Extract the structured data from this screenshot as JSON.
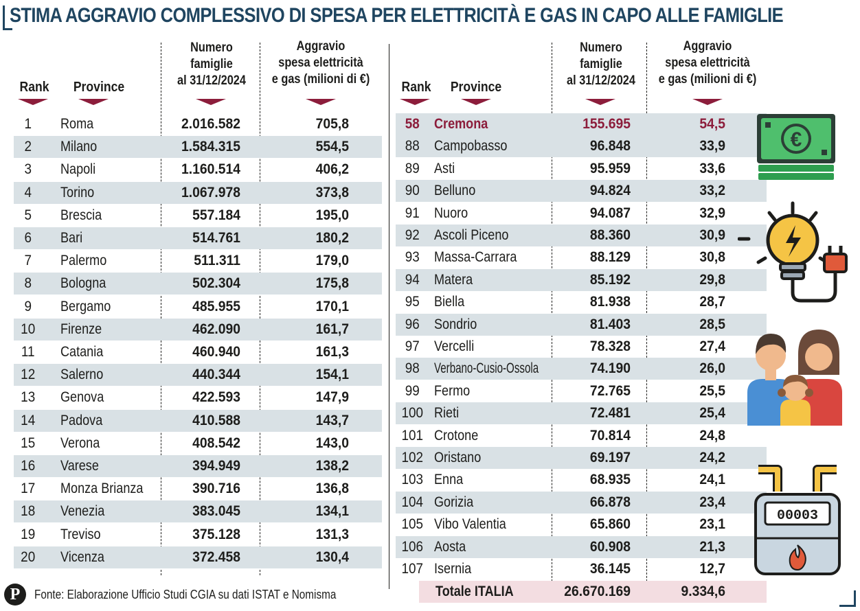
{
  "title": "STIMA AGGRAVIO COMPLESSIVO DI SPESA PER ELETTRICITÀ E GAS IN CAPO ALLE FAMIGLIE",
  "headers": {
    "rank": "Rank",
    "province": "Province",
    "families_l1": "Numero",
    "families_l2": "famiglie",
    "families_l3": "al 31/12/2024",
    "cost_l1": "Aggravio",
    "cost_l2": "spesa elettricità",
    "cost_l3": "e gas (milioni di €)"
  },
  "left_rows": [
    {
      "rank": "1",
      "province": "Roma",
      "families": "2.016.582",
      "cost": "705,8"
    },
    {
      "rank": "2",
      "province": "Milano",
      "families": "1.584.315",
      "cost": "554,5"
    },
    {
      "rank": "3",
      "province": "Napoli",
      "families": "1.160.514",
      "cost": "406,2"
    },
    {
      "rank": "4",
      "province": "Torino",
      "families": "1.067.978",
      "cost": "373,8"
    },
    {
      "rank": "5",
      "province": "Brescia",
      "families": "557.184",
      "cost": "195,0"
    },
    {
      "rank": "6",
      "province": "Bari",
      "families": "514.761",
      "cost": "180,2"
    },
    {
      "rank": "7",
      "province": "Palermo",
      "families": "511.311",
      "cost": "179,0"
    },
    {
      "rank": "8",
      "province": "Bologna",
      "families": "502.304",
      "cost": "175,8"
    },
    {
      "rank": "9",
      "province": "Bergamo",
      "families": "485.955",
      "cost": "170,1"
    },
    {
      "rank": "10",
      "province": "Firenze",
      "families": "462.090",
      "cost": "161,7"
    },
    {
      "rank": "11",
      "province": "Catania",
      "families": "460.940",
      "cost": "161,3"
    },
    {
      "rank": "12",
      "province": "Salerno",
      "families": "440.344",
      "cost": "154,1"
    },
    {
      "rank": "13",
      "province": "Genova",
      "families": "422.593",
      "cost": "147,9"
    },
    {
      "rank": "14",
      "province": "Padova",
      "families": "410.588",
      "cost": "143,7"
    },
    {
      "rank": "15",
      "province": "Verona",
      "families": "408.542",
      "cost": "143,0"
    },
    {
      "rank": "16",
      "province": "Varese",
      "families": "394.949",
      "cost": "138,2"
    },
    {
      "rank": "17",
      "province": "Monza Brianza",
      "families": "390.716",
      "cost": "136,8"
    },
    {
      "rank": "18",
      "province": "Venezia",
      "families": "383.045",
      "cost": "134,1"
    },
    {
      "rank": "19",
      "province": "Treviso",
      "families": "375.128",
      "cost": "131,3"
    },
    {
      "rank": "20",
      "province": "Vicenza",
      "families": "372.458",
      "cost": "130,4"
    }
  ],
  "right_rows": [
    {
      "rank": "58",
      "province": "Cremona",
      "families": "155.695",
      "cost": "54,5",
      "highlight": true
    },
    {
      "rank": "88",
      "province": "Campobasso",
      "families": "96.848",
      "cost": "33,9"
    },
    {
      "rank": "89",
      "province": "Asti",
      "families": "95.959",
      "cost": "33,6"
    },
    {
      "rank": "90",
      "province": "Belluno",
      "families": "94.824",
      "cost": "33,2"
    },
    {
      "rank": "91",
      "province": "Nuoro",
      "families": "94.087",
      "cost": "32,9"
    },
    {
      "rank": "92",
      "province": "Ascoli Piceno",
      "families": "88.360",
      "cost": "30,9"
    },
    {
      "rank": "93",
      "province": "Massa-Carrara",
      "families": "88.129",
      "cost": "30,8"
    },
    {
      "rank": "94",
      "province": "Matera",
      "families": "85.192",
      "cost": "29,8"
    },
    {
      "rank": "95",
      "province": "Biella",
      "families": "81.938",
      "cost": "28,7"
    },
    {
      "rank": "96",
      "province": "Sondrio",
      "families": "81.403",
      "cost": "28,5"
    },
    {
      "rank": "97",
      "province": "Vercelli",
      "families": "78.328",
      "cost": "27,4"
    },
    {
      "rank": "98",
      "province": "Verbano-Cusio-Ossola",
      "families": "74.190",
      "cost": "26,0"
    },
    {
      "rank": "99",
      "province": "Fermo",
      "families": "72.765",
      "cost": "25,5"
    },
    {
      "rank": "100",
      "province": "Rieti",
      "families": "72.481",
      "cost": "25,4"
    },
    {
      "rank": "101",
      "province": "Crotone",
      "families": "70.814",
      "cost": "24,8"
    },
    {
      "rank": "102",
      "province": "Oristano",
      "families": "69.197",
      "cost": "24,2"
    },
    {
      "rank": "103",
      "province": "Enna",
      "families": "68.935",
      "cost": "24,1"
    },
    {
      "rank": "104",
      "province": "Gorizia",
      "families": "66.878",
      "cost": "23,4"
    },
    {
      "rank": "105",
      "province": "Vibo Valentia",
      "families": "65.860",
      "cost": "23,1"
    },
    {
      "rank": "106",
      "province": "Aosta",
      "families": "60.908",
      "cost": "21,3"
    },
    {
      "rank": "107",
      "province": "Isernia",
      "families": "36.145",
      "cost": "12,7"
    }
  ],
  "total": {
    "label": "Totale ITALIA",
    "families": "26.670.169",
    "cost": "9.334,6"
  },
  "footer": {
    "source": "Fonte: Elaborazione Ufficio Studi CGIA su dati ISTAT e Nomisma",
    "logo": "P"
  },
  "meter_reading": "00003",
  "colors": {
    "title": "#1f4560",
    "accent": "#8c1d3b",
    "shade": "#d9e1e5",
    "total_bg": "#f3dde1"
  },
  "icons": [
    "banknote-icon",
    "lightbulb-plug-icon",
    "family-icon",
    "gas-meter-icon"
  ]
}
